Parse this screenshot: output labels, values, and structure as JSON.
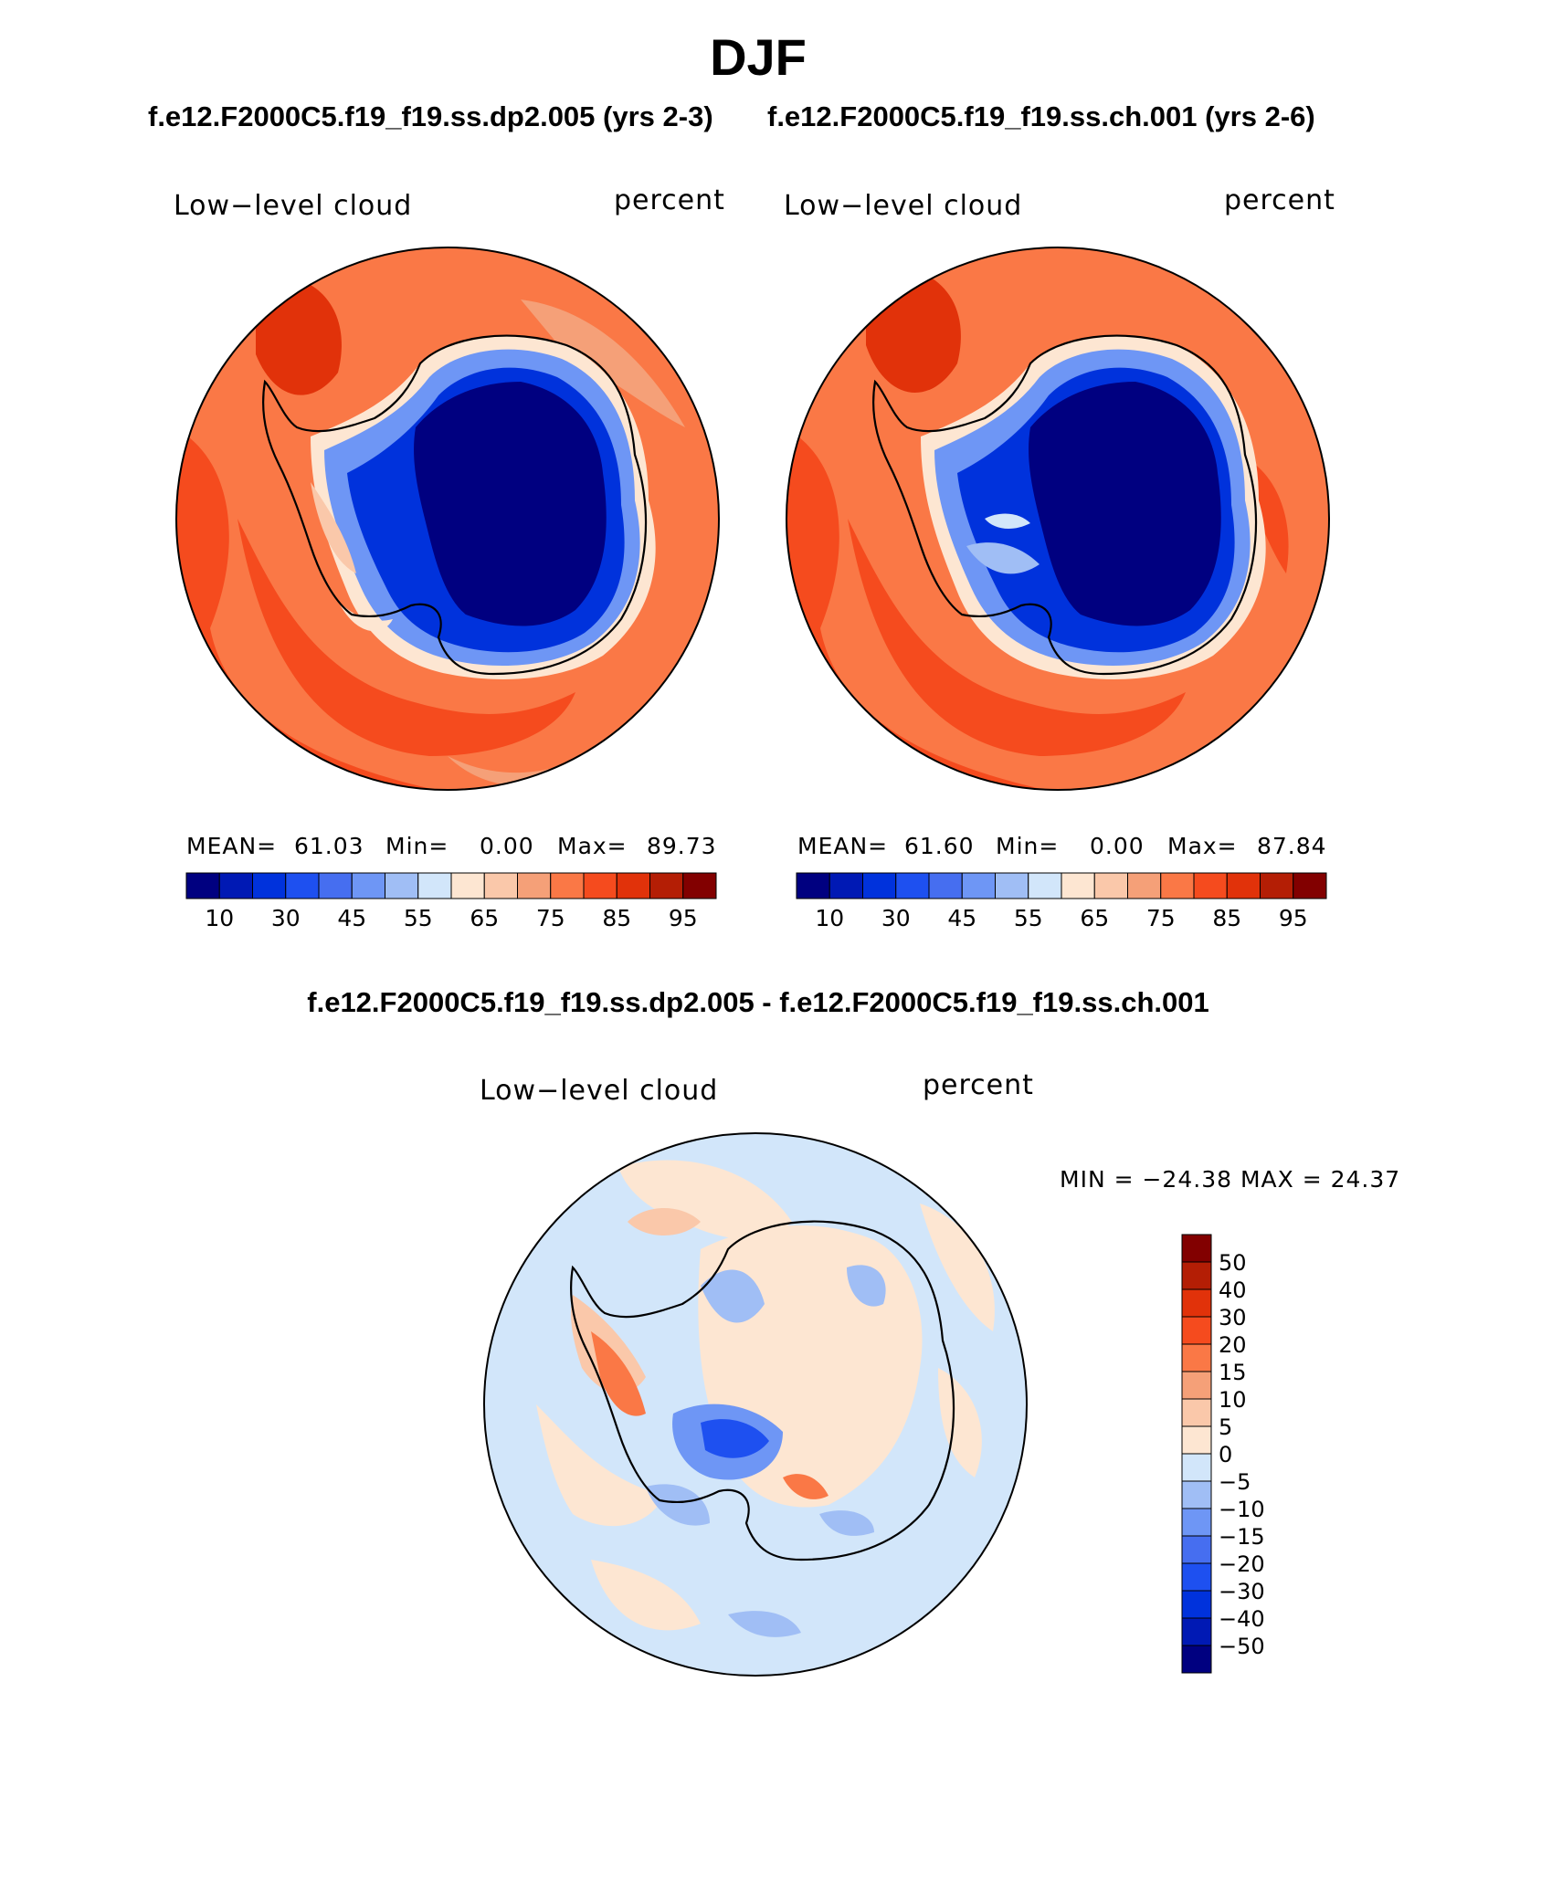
{
  "page": {
    "season": "DJF",
    "subtitle_left": "f.e12.F2000C5.f19_f19.ss.dp2.005 (yrs 2-3)",
    "subtitle_right": "f.e12.F2000C5.f19_f19.ss.ch.001 (yrs 2-6)",
    "diff_title": "f.e12.F2000C5.f19_f19.ss.dp2.005 - f.e12.F2000C5.f19_f19.ss.ch.001"
  },
  "panels": [
    {
      "variable": "Low−level cloud",
      "units": "percent",
      "mean_label": "MEAN=",
      "mean": "61.03",
      "min_label": "Min=",
      "min": "0.00",
      "max_label": "Max=",
      "max": "89.73"
    },
    {
      "variable": "Low−level cloud",
      "units": "percent",
      "mean_label": "MEAN=",
      "mean": "61.60",
      "min_label": "Min=",
      "min": "0.00",
      "max_label": "Max=",
      "max": "87.84"
    }
  ],
  "diff_panel": {
    "variable": "Low−level cloud",
    "units": "percent",
    "minmax": "MIN = −24.38 MAX =   24.37"
  },
  "colorbar_main": {
    "colors": [
      "#000080",
      "#0019b4",
      "#0032dc",
      "#1e50f0",
      "#466ef0",
      "#6e96f5",
      "#a0bef5",
      "#d2e6fa",
      "#fde6d2",
      "#fac8aa",
      "#f5a078",
      "#fa7846",
      "#f54b1e",
      "#e1320a",
      "#b41e05",
      "#820000"
    ],
    "tick_labels": [
      "10",
      "30",
      "45",
      "55",
      "65",
      "75",
      "85",
      "95"
    ]
  },
  "colorbar_diff": {
    "colors": [
      "#820000",
      "#b41e05",
      "#e1320a",
      "#f54b1e",
      "#fa7846",
      "#f5a078",
      "#fac8aa",
      "#fde6d2",
      "#d2e6fa",
      "#a0bef5",
      "#6e96f5",
      "#466ef0",
      "#1e50f0",
      "#0032dc",
      "#0019b4",
      "#000080"
    ],
    "tick_labels": [
      "50",
      "40",
      "30",
      "20",
      "15",
      "10",
      "5",
      "0",
      "−5",
      "−10",
      "−15",
      "−20",
      "−30",
      "−40",
      "−50"
    ]
  }
}
